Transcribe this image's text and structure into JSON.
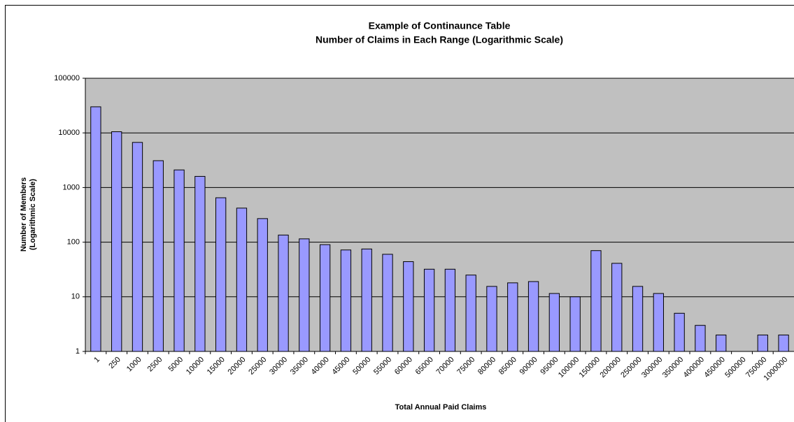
{
  "chart_data": {
    "type": "bar",
    "title": "Example of Continaunce Table",
    "subtitle": "Number of Claims in Each Range (Logarithmic Scale)",
    "y_label": [
      "Number of Members",
      "(Logarithmic Scale)"
    ],
    "x_label": "Total Annual Paid Claims",
    "categories": [
      "1",
      "250",
      "1000",
      "2500",
      "5000",
      "10000",
      "15000",
      "20000",
      "25000",
      "30000",
      "35000",
      "40000",
      "45000",
      "50000",
      "55000",
      "60000",
      "65000",
      "70000",
      "75000",
      "80000",
      "85000",
      "90000",
      "95000",
      "100000",
      "150000",
      "200000",
      "250000",
      "300000",
      "350000",
      "400000",
      "450000",
      "500000",
      "750000",
      "1000000"
    ],
    "values": [
      30000,
      10500,
      6700,
      3100,
      2100,
      1600,
      650,
      420,
      270,
      135,
      115,
      90,
      72,
      75,
      60,
      44,
      32,
      32,
      25,
      15.5,
      18,
      19,
      11.5,
      10,
      70,
      41,
      15.5,
      11.5,
      5,
      3,
      2,
      null,
      2,
      2
    ],
    "color": "#9999ff",
    "log_scale": true,
    "ylim": [
      1,
      100000
    ],
    "yticks": [
      1,
      10,
      100,
      1000,
      10000,
      100000
    ],
    "grid": true
  }
}
